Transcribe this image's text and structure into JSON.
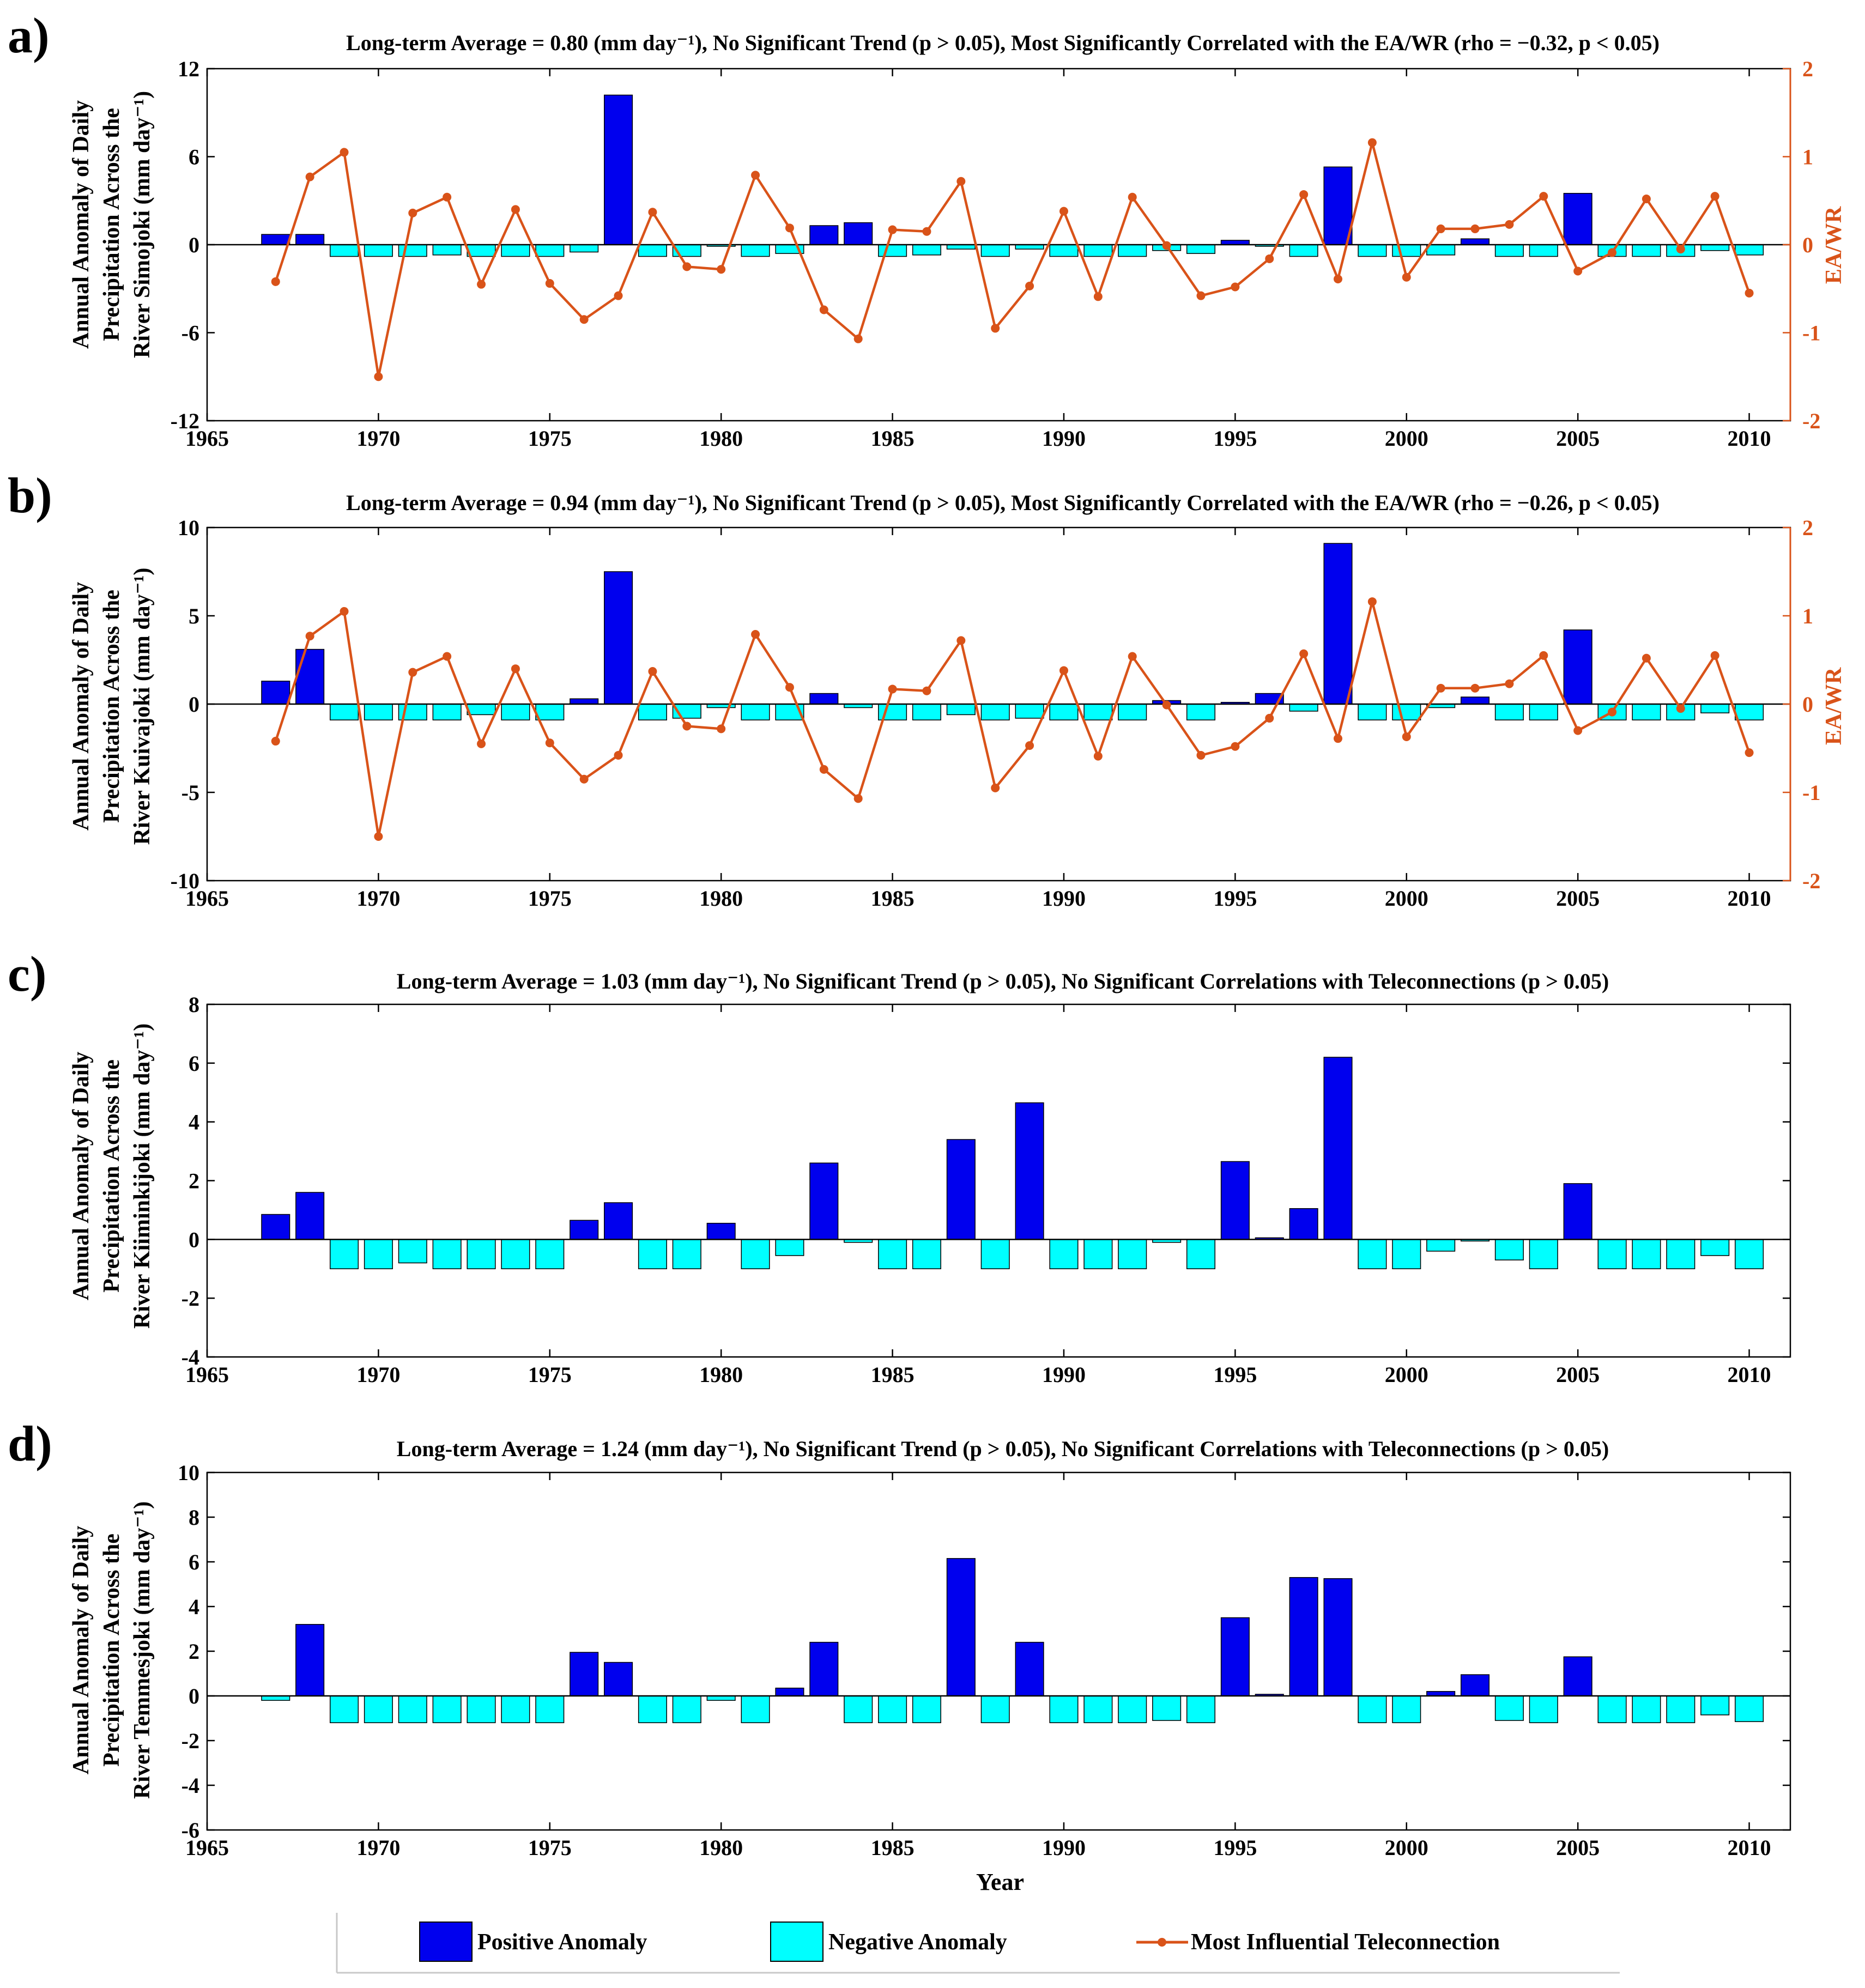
{
  "chart_data": [
    {
      "panel": "a)",
      "type": "bar+line",
      "title": "Long-term Average = 0.80 (mm day⁻¹), No Significant Trend (p > 0.05), Most Significantly Correlated with the EA/WR (rho = −0.32, p < 0.05)",
      "ylabel": [
        "Annual Anomaly of Daily",
        "Precipitation Across the",
        "River Simojoki (mm day⁻¹)"
      ],
      "y2label": "EA/WR",
      "ylim": [
        -12,
        12
      ],
      "yticks": [
        -12,
        -6,
        0,
        6,
        12
      ],
      "y2lim": [
        -2,
        2
      ],
      "y2ticks": [
        -2,
        -1,
        0,
        1,
        2
      ],
      "xlim": [
        1965,
        2011.2
      ],
      "xticks": [
        1965,
        1970,
        1975,
        1980,
        1985,
        1990,
        1995,
        2000,
        2005,
        2010
      ],
      "years": [
        1967,
        1968,
        1969,
        1970,
        1971,
        1972,
        1973,
        1974,
        1975,
        1976,
        1977,
        1978,
        1979,
        1980,
        1981,
        1982,
        1983,
        1984,
        1985,
        1986,
        1987,
        1988,
        1989,
        1990,
        1991,
        1992,
        1993,
        1994,
        1995,
        1996,
        1997,
        1998,
        1999,
        2000,
        2001,
        2002,
        2003,
        2004,
        2005,
        2006,
        2007,
        2008,
        2009,
        2010
      ],
      "values": [
        0.7,
        0.7,
        -0.8,
        -0.8,
        -0.8,
        -0.7,
        -0.8,
        -0.8,
        -0.8,
        -0.5,
        10.2,
        -0.8,
        -0.8,
        -0.1,
        -0.8,
        -0.6,
        1.3,
        1.5,
        -0.8,
        -0.7,
        -0.3,
        -0.8,
        -0.3,
        -0.8,
        -0.8,
        -0.8,
        -0.4,
        -0.6,
        0.3,
        -0.1,
        -0.8,
        5.3,
        -0.8,
        -0.8,
        -0.7,
        0.4,
        -0.8,
        -0.8,
        3.5,
        -0.8,
        -0.8,
        -0.8,
        -0.4,
        -0.7
      ],
      "teleconnection": [
        -0.42,
        0.77,
        1.05,
        -1.5,
        0.36,
        0.54,
        -0.45,
        0.4,
        -0.44,
        -0.85,
        -0.58,
        0.37,
        -0.25,
        -0.28,
        0.79,
        0.19,
        -0.74,
        -1.07,
        0.17,
        0.15,
        0.72,
        -0.95,
        -0.47,
        0.38,
        -0.59,
        0.54,
        -0.01,
        -0.58,
        -0.48,
        -0.16,
        0.57,
        -0.39,
        1.16,
        -0.37,
        0.18,
        0.18,
        0.23,
        0.55,
        -0.3,
        -0.09,
        0.52,
        -0.05,
        0.55,
        -0.55
      ]
    },
    {
      "panel": "b)",
      "type": "bar+line",
      "title": "Long-term Average = 0.94 (mm day⁻¹), No Significant Trend (p > 0.05), Most Significantly Correlated with the EA/WR (rho = −0.26, p < 0.05)",
      "ylabel": [
        "Annual Anomaly of Daily",
        "Precipitation Across the",
        "River Kuivajoki (mm day⁻¹)"
      ],
      "y2label": "EA/WR",
      "ylim": [
        -10,
        10
      ],
      "yticks": [
        -10,
        -5,
        0,
        5,
        10
      ],
      "y2lim": [
        -2,
        2
      ],
      "y2ticks": [
        -2,
        -1,
        0,
        1,
        2
      ],
      "xlim": [
        1965,
        2011.2
      ],
      "xticks": [
        1965,
        1970,
        1975,
        1980,
        1985,
        1990,
        1995,
        2000,
        2005,
        2010
      ],
      "years": [
        1967,
        1968,
        1969,
        1970,
        1971,
        1972,
        1973,
        1974,
        1975,
        1976,
        1977,
        1978,
        1979,
        1980,
        1981,
        1982,
        1983,
        1984,
        1985,
        1986,
        1987,
        1988,
        1989,
        1990,
        1991,
        1992,
        1993,
        1994,
        1995,
        1996,
        1997,
        1998,
        1999,
        2000,
        2001,
        2002,
        2003,
        2004,
        2005,
        2006,
        2007,
        2008,
        2009,
        2010
      ],
      "values": [
        1.3,
        3.1,
        -0.9,
        -0.9,
        -0.9,
        -0.9,
        -0.6,
        -0.9,
        -0.9,
        0.3,
        7.5,
        -0.9,
        -0.8,
        -0.2,
        -0.9,
        -0.9,
        0.6,
        -0.2,
        -0.9,
        -0.9,
        -0.6,
        -0.9,
        -0.8,
        -0.9,
        -0.9,
        -0.9,
        0.2,
        -0.9,
        0.1,
        0.6,
        -0.4,
        9.1,
        -0.9,
        -0.9,
        -0.2,
        0.4,
        -0.9,
        -0.9,
        4.2,
        -0.9,
        -0.9,
        -0.9,
        -0.5,
        -0.9
      ],
      "teleconnection": [
        -0.42,
        0.77,
        1.05,
        -1.5,
        0.36,
        0.54,
        -0.45,
        0.4,
        -0.44,
        -0.85,
        -0.58,
        0.37,
        -0.25,
        -0.28,
        0.79,
        0.19,
        -0.74,
        -1.07,
        0.17,
        0.15,
        0.72,
        -0.95,
        -0.47,
        0.38,
        -0.59,
        0.54,
        -0.01,
        -0.58,
        -0.48,
        -0.16,
        0.57,
        -0.39,
        1.16,
        -0.37,
        0.18,
        0.18,
        0.23,
        0.55,
        -0.3,
        -0.09,
        0.52,
        -0.05,
        0.55,
        -0.55
      ]
    },
    {
      "panel": "c)",
      "type": "bar",
      "title": "Long-term Average = 1.03 (mm day⁻¹), No Significant Trend (p > 0.05), No Significant Correlations with Teleconnections (p > 0.05)",
      "ylabel": [
        "Annual Anomaly of Daily",
        "Precipitation Across the",
        "River Kiiminkijoki (mm day⁻¹)"
      ],
      "ylim": [
        -4,
        8
      ],
      "yticks": [
        -4,
        -2,
        0,
        2,
        4,
        6,
        8
      ],
      "xlim": [
        1965,
        2011.2
      ],
      "xticks": [
        1965,
        1970,
        1975,
        1980,
        1985,
        1990,
        1995,
        2000,
        2005,
        2010
      ],
      "years": [
        1967,
        1968,
        1969,
        1970,
        1971,
        1972,
        1973,
        1974,
        1975,
        1976,
        1977,
        1978,
        1979,
        1980,
        1981,
        1982,
        1983,
        1984,
        1985,
        1986,
        1987,
        1988,
        1989,
        1990,
        1991,
        1992,
        1993,
        1994,
        1995,
        1996,
        1997,
        1998,
        1999,
        2000,
        2001,
        2002,
        2003,
        2004,
        2005,
        2006,
        2007,
        2008,
        2009,
        2010
      ],
      "values": [
        0.85,
        1.6,
        -1.0,
        -1.0,
        -0.8,
        -1.0,
        -1.0,
        -1.0,
        -1.0,
        0.65,
        1.25,
        -1.0,
        -1.0,
        0.55,
        -1.0,
        -0.55,
        2.6,
        -0.1,
        -1.0,
        -1.0,
        3.4,
        -1.0,
        4.65,
        -1.0,
        -1.0,
        -1.0,
        -0.1,
        -1.0,
        2.65,
        0.05,
        1.05,
        6.2,
        -1.0,
        -1.0,
        -0.4,
        -0.05,
        -0.7,
        -1.0,
        1.9,
        -1.0,
        -1.0,
        -1.0,
        -0.55,
        -1.0
      ]
    },
    {
      "panel": "d)",
      "type": "bar",
      "title": "Long-term Average = 1.24 (mm day⁻¹), No Significant Trend (p > 0.05), No Significant Correlations with Teleconnections (p > 0.05)",
      "ylabel": [
        "Annual Anomaly of Daily",
        "Precipitation Across the",
        "River Temmesjoki (mm day⁻¹)"
      ],
      "xlabel": "Year",
      "ylim": [
        -6,
        10
      ],
      "yticks": [
        -6,
        -4,
        -2,
        0,
        2,
        4,
        6,
        8,
        10
      ],
      "xlim": [
        1965,
        2011.2
      ],
      "xticks": [
        1965,
        1970,
        1975,
        1980,
        1985,
        1990,
        1995,
        2000,
        2005,
        2010
      ],
      "years": [
        1967,
        1968,
        1969,
        1970,
        1971,
        1972,
        1973,
        1974,
        1975,
        1976,
        1977,
        1978,
        1979,
        1980,
        1981,
        1982,
        1983,
        1984,
        1985,
        1986,
        1987,
        1988,
        1989,
        1990,
        1991,
        1992,
        1993,
        1994,
        1995,
        1996,
        1997,
        1998,
        1999,
        2000,
        2001,
        2002,
        2003,
        2004,
        2005,
        2006,
        2007,
        2008,
        2009,
        2010
      ],
      "values": [
        -0.2,
        3.2,
        -1.2,
        -1.2,
        -1.2,
        -1.2,
        -1.2,
        -1.2,
        -1.2,
        1.95,
        1.5,
        -1.2,
        -1.2,
        -0.2,
        -1.2,
        0.35,
        2.4,
        -1.2,
        -1.2,
        -1.2,
        6.15,
        -1.2,
        2.4,
        -1.2,
        -1.2,
        -1.2,
        -1.1,
        -1.2,
        3.5,
        0.0,
        5.3,
        5.25,
        -1.2,
        -1.2,
        0.2,
        0.95,
        -1.1,
        -1.2,
        1.75,
        -1.2,
        -1.2,
        -1.2,
        -0.85,
        -1.15
      ]
    }
  ],
  "legend": {
    "positive": "Positive Anomaly",
    "negative": "Negative Anomaly",
    "line": "Most Influential Teleconnection"
  },
  "colors": {
    "positive": "#0000EE",
    "negative": "#00FFFF",
    "line": "#D95319",
    "axis": "#000000"
  }
}
